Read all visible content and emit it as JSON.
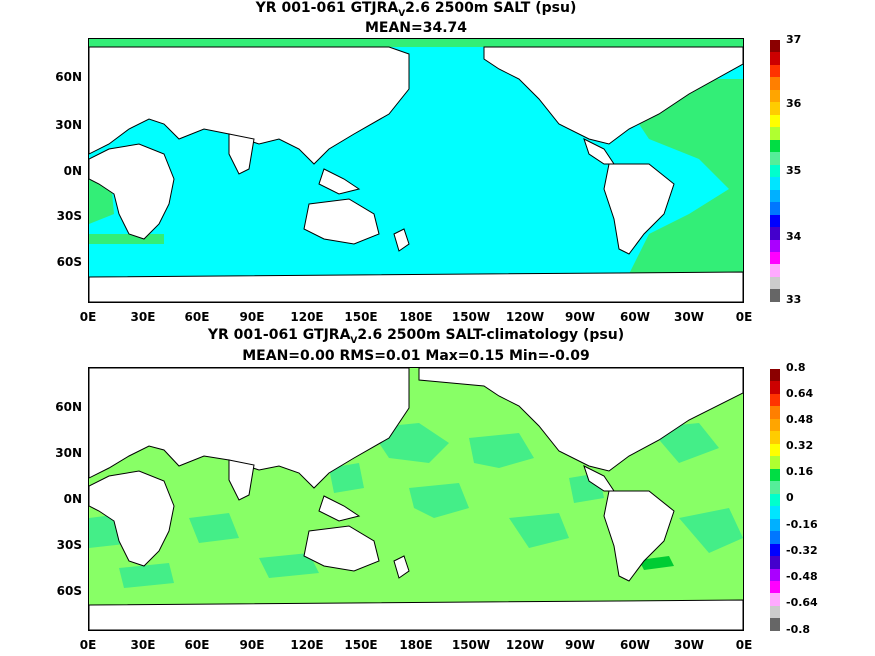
{
  "panel1": {
    "title_pre": "YR 001-061 GTJRA",
    "title_sub": "V",
    "title_post": "2.6 2500m SALT (psu)",
    "subtitle": "MEAN=34.74",
    "colorbar_labels": [
      "37",
      "36",
      "35",
      "34",
      "33"
    ]
  },
  "panel2": {
    "title": "YR 001-061 GTJRA",
    "title_sub": "V",
    "title_post": "2.6 2500m SALT-climatology (psu)",
    "subtitle": "MEAN=0.00   RMS=0.01   Max=0.15   Min=-0.09",
    "colorbar_labels": [
      "0.8",
      "0.64",
      "0.48",
      "0.32",
      "0.16",
      "0",
      "-0.16",
      "-0.32",
      "-0.48",
      "-0.64",
      "-0.8"
    ]
  },
  "lat_labels": [
    "60N",
    "30N",
    "0N",
    "30S",
    "60S"
  ],
  "lon_labels": [
    "0E",
    "30E",
    "60E",
    "90E",
    "120E",
    "150E",
    "180E",
    "150W",
    "120W",
    "90W",
    "60W",
    "30W",
    "0E"
  ],
  "colors": {
    "pacific_indian": "#00ffff",
    "atlantic": "#33ee77",
    "anomaly_main": "#88ff66",
    "anomaly_patch": "#44ee88",
    "land": "#ffffff"
  },
  "colorbar_colors": [
    "#8b0000",
    "#cc0000",
    "#ff3300",
    "#ff7f00",
    "#ffa500",
    "#ffcc00",
    "#ffff00",
    "#b0ff30",
    "#00dd44",
    "#55ee99",
    "#00ffcc",
    "#00e5ff",
    "#00b0ff",
    "#0077ff",
    "#0000ff",
    "#4400cc",
    "#aa00ff",
    "#ff00ff",
    "#ffaaff",
    "#cccccc",
    "#666666"
  ]
}
